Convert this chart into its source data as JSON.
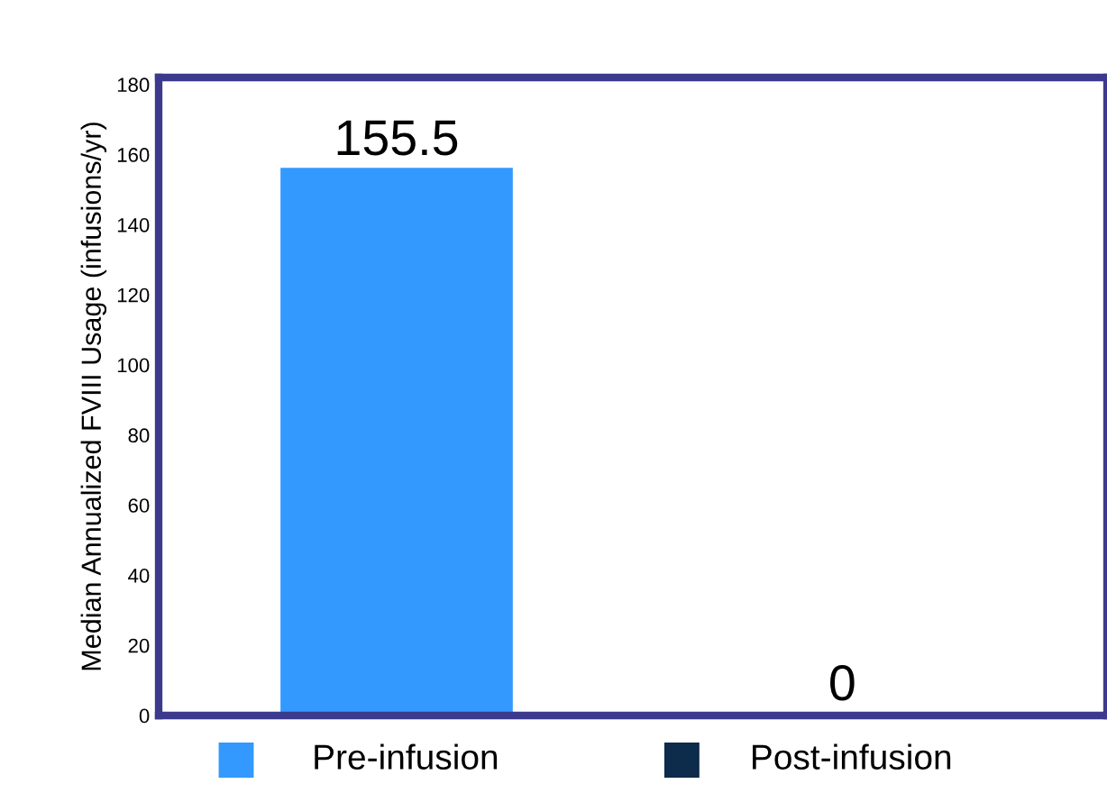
{
  "chart_data": {
    "type": "bar",
    "ylabel": "Median Annualized FVIII Usage (infusions/yr)",
    "categories": [
      "Pre-infusion",
      "Post-infusion"
    ],
    "values": [
      155.5,
      0
    ],
    "colors": [
      "#3399ff",
      "#0d2b4a"
    ],
    "ylim": [
      0,
      182
    ],
    "yticks": [
      0,
      20,
      40,
      60,
      80,
      100,
      120,
      140,
      160,
      180
    ],
    "data_labels": true,
    "grid": false,
    "legend": false
  }
}
